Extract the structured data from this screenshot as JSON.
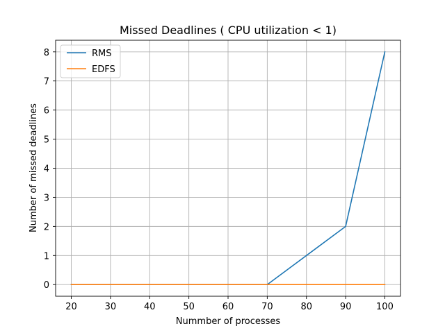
{
  "chart_data": {
    "type": "line",
    "title": "Missed Deadlines ( CPU utilization < 1)",
    "xlabel": "Nummber of processes",
    "ylabel": "Number of missed deadlines",
    "x": [
      20,
      30,
      40,
      50,
      60,
      70,
      80,
      90,
      100
    ],
    "xlim": [
      16,
      104
    ],
    "ylim": [
      -0.4,
      8.4
    ],
    "xticks": [
      20,
      30,
      40,
      50,
      60,
      70,
      80,
      90,
      100
    ],
    "yticks": [
      0,
      1,
      2,
      3,
      4,
      5,
      6,
      7,
      8
    ],
    "grid": true,
    "legend": "top-left",
    "series": [
      {
        "name": "RMS",
        "color": "#1f77b4",
        "values": [
          0,
          0,
          0,
          0,
          0,
          0,
          1,
          2,
          8
        ]
      },
      {
        "name": "EDFS",
        "color": "#ff7f0e",
        "values": [
          0,
          0,
          0,
          0,
          0,
          0,
          0,
          0,
          0
        ]
      }
    ]
  }
}
